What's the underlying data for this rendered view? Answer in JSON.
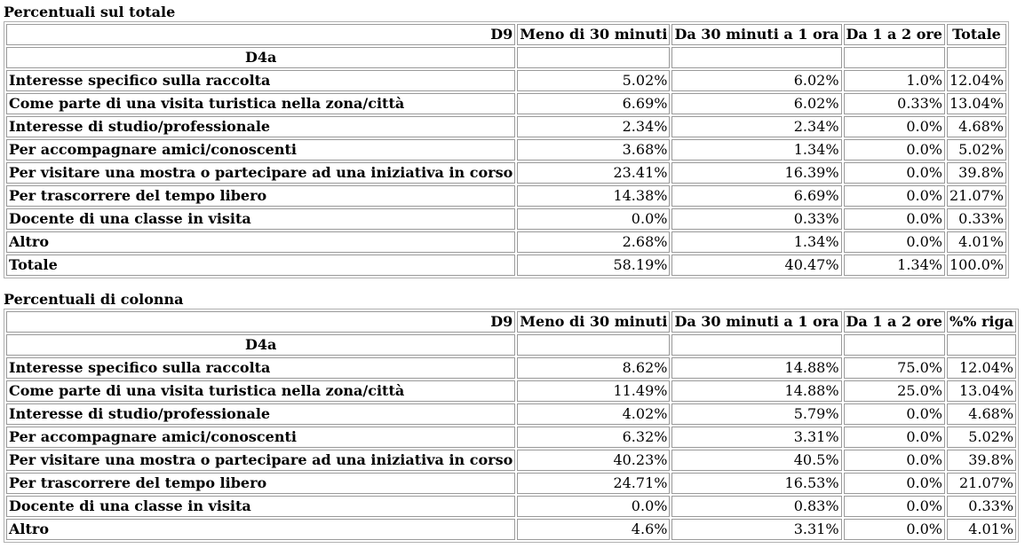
{
  "tables": [
    {
      "caption": "Percentuali sul totale",
      "corner_label": "D9",
      "row_var_label": "D4a",
      "columns": [
        "Meno di 30 minuti",
        "Da 30 minuti a 1 ora",
        "Da 1 a 2 ore",
        "Totale"
      ],
      "rows": [
        {
          "label": "Interesse specifico sulla raccolta",
          "values": [
            "5.02%",
            "6.02%",
            "1.0%",
            "12.04%"
          ]
        },
        {
          "label": "Come parte di una visita turistica nella zona/città",
          "values": [
            "6.69%",
            "6.02%",
            "0.33%",
            "13.04%"
          ]
        },
        {
          "label": "Interesse di studio/professionale",
          "values": [
            "2.34%",
            "2.34%",
            "0.0%",
            "4.68%"
          ]
        },
        {
          "label": "Per accompagnare amici/conoscenti",
          "values": [
            "3.68%",
            "1.34%",
            "0.0%",
            "5.02%"
          ]
        },
        {
          "label": "Per visitare una mostra o partecipare ad una iniziativa in corso",
          "values": [
            "23.41%",
            "16.39%",
            "0.0%",
            "39.8%"
          ]
        },
        {
          "label": "Per trascorrere del tempo libero",
          "values": [
            "14.38%",
            "6.69%",
            "0.0%",
            "21.07%"
          ]
        },
        {
          "label": "Docente di una classe in visita",
          "values": [
            "0.0%",
            "0.33%",
            "0.0%",
            "0.33%"
          ]
        },
        {
          "label": "Altro",
          "values": [
            "2.68%",
            "1.34%",
            "0.0%",
            "4.01%"
          ]
        },
        {
          "label": "Totale",
          "values": [
            "58.19%",
            "40.47%",
            "1.34%",
            "100.0%"
          ]
        }
      ]
    },
    {
      "caption": "Percentuali di colonna",
      "corner_label": "D9",
      "row_var_label": "D4a",
      "columns": [
        "Meno di 30 minuti",
        "Da 30 minuti a 1 ora",
        "Da 1 a 2 ore",
        "%% riga"
      ],
      "rows": [
        {
          "label": "Interesse specifico sulla raccolta",
          "values": [
            "8.62%",
            "14.88%",
            "75.0%",
            "12.04%"
          ]
        },
        {
          "label": "Come parte di una visita turistica nella zona/città",
          "values": [
            "11.49%",
            "14.88%",
            "25.0%",
            "13.04%"
          ]
        },
        {
          "label": "Interesse di studio/professionale",
          "values": [
            "4.02%",
            "5.79%",
            "0.0%",
            "4.68%"
          ]
        },
        {
          "label": "Per accompagnare amici/conoscenti",
          "values": [
            "6.32%",
            "3.31%",
            "0.0%",
            "5.02%"
          ]
        },
        {
          "label": "Per visitare una mostra o partecipare ad una iniziativa in corso",
          "values": [
            "40.23%",
            "40.5%",
            "0.0%",
            "39.8%"
          ]
        },
        {
          "label": "Per trascorrere del tempo libero",
          "values": [
            "24.71%",
            "16.53%",
            "0.0%",
            "21.07%"
          ]
        },
        {
          "label": "Docente di una classe in visita",
          "values": [
            "0.0%",
            "0.83%",
            "0.0%",
            "0.33%"
          ]
        },
        {
          "label": "Altro",
          "values": [
            "4.6%",
            "3.31%",
            "0.0%",
            "4.01%"
          ]
        }
      ]
    }
  ]
}
